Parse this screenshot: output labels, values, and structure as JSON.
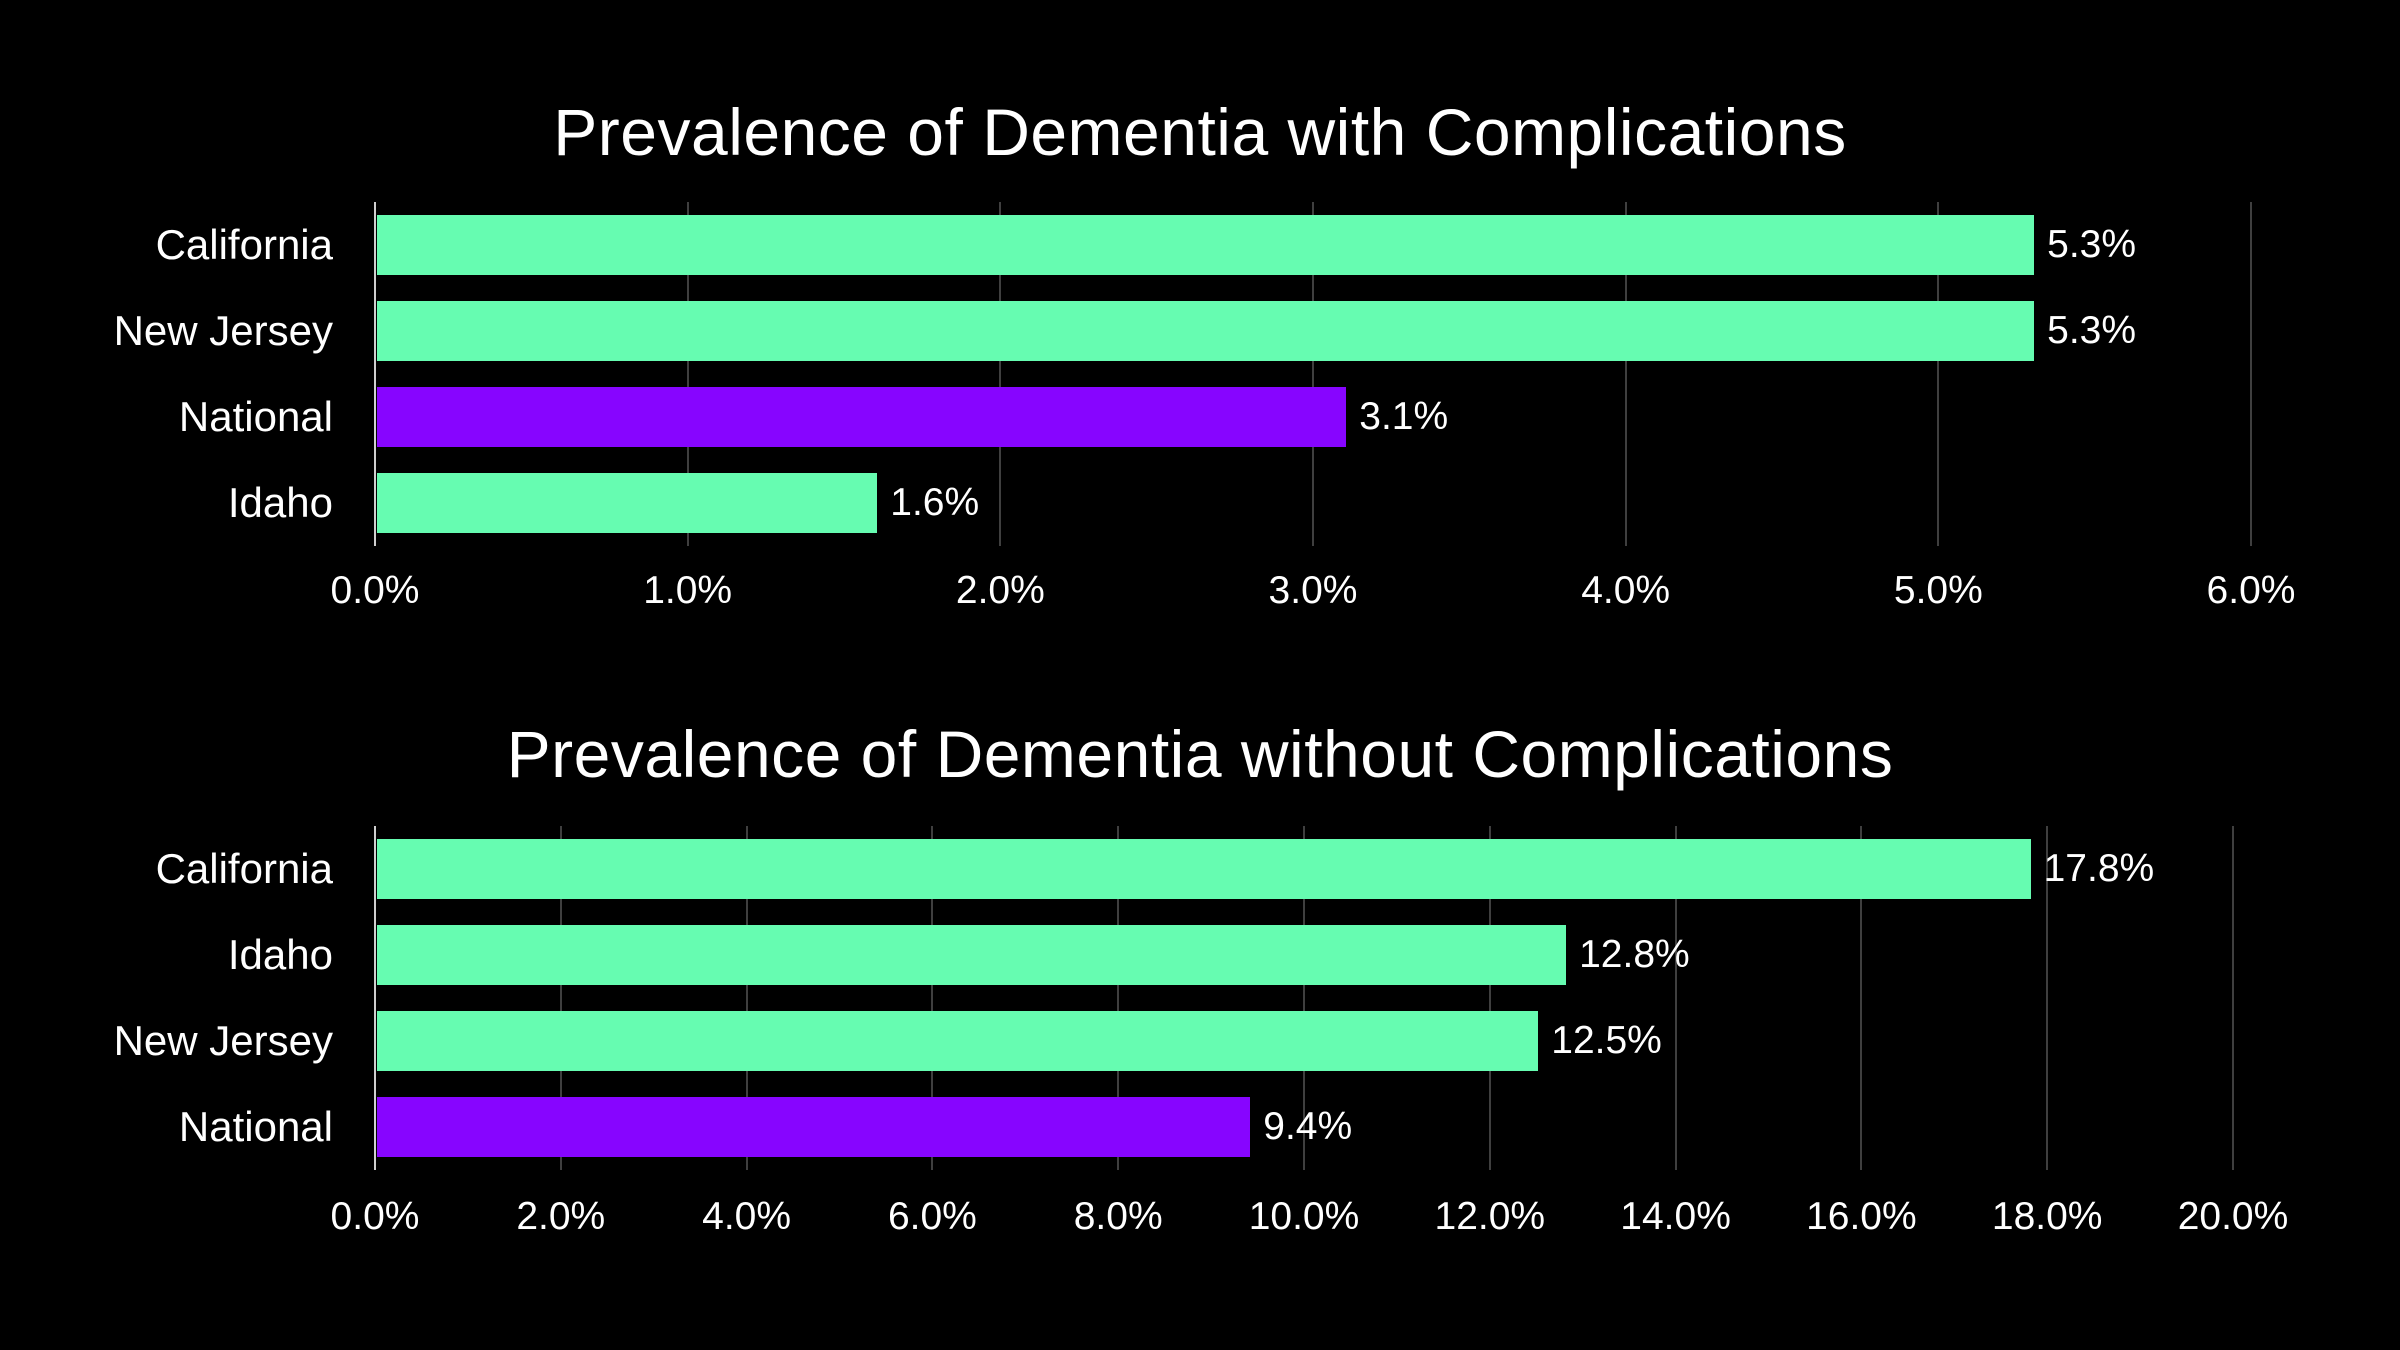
{
  "figure": {
    "background": "#000000",
    "text_color": "#ffffff",
    "gridline_color": "#3f3f3f",
    "axis_line_color": "#cfcfcf",
    "bar_green": "#66fcb1",
    "bar_purple": "#8705ff"
  },
  "chart_data": [
    {
      "type": "bar",
      "orientation": "horizontal",
      "title": "Prevalence of Dementia with Complications",
      "categories": [
        "California",
        "New Jersey",
        "National",
        "Idaho"
      ],
      "values": [
        5.3,
        5.3,
        3.1,
        1.6
      ],
      "value_labels": [
        "5.3%",
        "5.3%",
        "3.1%",
        "1.6%"
      ],
      "bar_colors": [
        "#66fcb1",
        "#66fcb1",
        "#8705ff",
        "#66fcb1"
      ],
      "x_ticks": {
        "values": [
          0,
          1,
          2,
          3,
          4,
          5,
          6
        ],
        "labels": [
          "0.0%",
          "1.0%",
          "2.0%",
          "3.0%",
          "4.0%",
          "5.0%",
          "6.0%"
        ]
      },
      "xlim": [
        0,
        6
      ],
      "grid": true,
      "legend": false,
      "xlabel": "",
      "ylabel": ""
    },
    {
      "type": "bar",
      "orientation": "horizontal",
      "title": "Prevalence of Dementia without Complications",
      "categories": [
        "California",
        "Idaho",
        "New Jersey",
        "National"
      ],
      "values": [
        17.8,
        12.8,
        12.5,
        9.4
      ],
      "value_labels": [
        "17.8%",
        "12.8%",
        "12.5%",
        "9.4%"
      ],
      "bar_colors": [
        "#66fcb1",
        "#66fcb1",
        "#66fcb1",
        "#8705ff"
      ],
      "x_ticks": {
        "values": [
          0,
          2,
          4,
          6,
          8,
          10,
          12,
          14,
          16,
          18,
          20
        ],
        "labels": [
          "0.0%",
          "2.0%",
          "4.0%",
          "6.0%",
          "8.0%",
          "10.0%",
          "12.0%",
          "14.0%",
          "16.0%",
          "18.0%",
          "20.0%"
        ]
      },
      "xlim": [
        0,
        20
      ],
      "grid": true,
      "legend": false,
      "xlabel": "",
      "ylabel": ""
    }
  ]
}
